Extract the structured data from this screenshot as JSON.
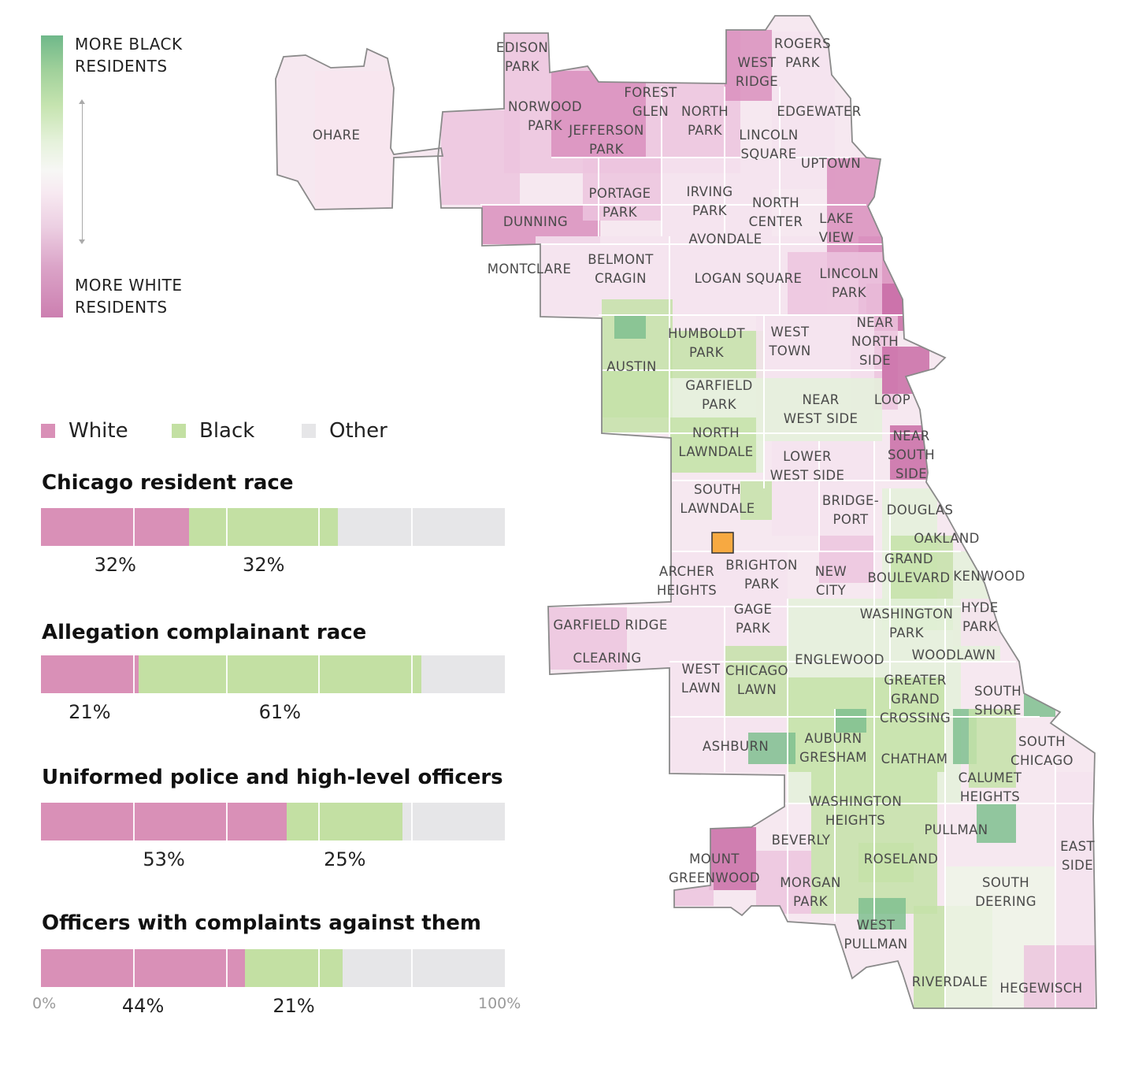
{
  "gradient_legend": {
    "top_label": [
      "MORE BLACK",
      "RESIDENTS"
    ],
    "bottom_label": [
      "MORE WHITE",
      "RESIDENTS"
    ],
    "colors": [
      "#6fb88a",
      "#c6e4b0",
      "#f7f7f5",
      "#eccfe2",
      "#cc7fb0"
    ]
  },
  "category_legend": [
    {
      "label": "White",
      "color": "#d990b7"
    },
    {
      "label": "Black",
      "color": "#c3e0a3"
    },
    {
      "label": "Other",
      "color": "#e6e6e8"
    }
  ],
  "chart_data": {
    "type": "bar",
    "stacked": true,
    "x_range": [
      0,
      100
    ],
    "xticks": [
      "0%",
      "100%"
    ],
    "categories": [
      "Chicago resident race",
      "Allegation complainant race",
      "Uniformed police and high-level officers",
      "Officers with complaints against them"
    ],
    "series": [
      {
        "name": "White",
        "values": [
          32,
          21,
          53,
          44
        ],
        "labels": [
          "32%",
          "21%",
          "53%",
          "44%"
        ]
      },
      {
        "name": "Black",
        "values": [
          32,
          61,
          25,
          21
        ],
        "labels": [
          "32%",
          "61%",
          "25%",
          "21%"
        ]
      },
      {
        "name": "Other",
        "values": [
          36,
          18,
          22,
          35
        ]
      }
    ]
  },
  "map": {
    "marker_color": "#f7a941",
    "neighborhoods": [
      [
        "EDISON",
        "PARK"
      ],
      [
        "ROGERS",
        "PARK"
      ],
      [
        "WEST",
        "RIDGE"
      ],
      [
        "NORWOOD",
        "PARK"
      ],
      [
        "FOREST",
        "GLEN"
      ],
      [
        "NORTH",
        "PARK"
      ],
      [
        "EDGEWATER"
      ],
      [
        "OHARE"
      ],
      [
        "JEFFERSON",
        "PARK"
      ],
      [
        "LINCOLN",
        "SQUARE"
      ],
      [
        "UPTOWN"
      ],
      [
        "PORTAGE",
        "PARK"
      ],
      [
        "IRVING",
        "PARK"
      ],
      [
        "NORTH",
        "CENTER"
      ],
      [
        "DUNNING"
      ],
      [
        "LAKE",
        "VIEW"
      ],
      [
        "AVONDALE"
      ],
      [
        "BELMONT",
        "CRAGIN"
      ],
      [
        "MONTCLARE"
      ],
      [
        "LOGAN SQUARE"
      ],
      [
        "LINCOLN",
        "PARK"
      ],
      [
        "NEAR",
        "NORTH",
        "SIDE"
      ],
      [
        "HUMBOLDT",
        "PARK"
      ],
      [
        "WEST",
        "TOWN"
      ],
      [
        "AUSTIN"
      ],
      [
        "GARFIELD",
        "PARK"
      ],
      [
        "NEAR",
        "WEST SIDE"
      ],
      [
        "LOOP"
      ],
      [
        "NORTH",
        "LAWNDALE"
      ],
      [
        "NEAR",
        "SOUTH",
        "SIDE"
      ],
      [
        "LOWER",
        "WEST SIDE"
      ],
      [
        "SOUTH",
        "LAWNDALE"
      ],
      [
        "BRIDGE-",
        "PORT"
      ],
      [
        "DOUGLAS"
      ],
      [
        "OAKLAND"
      ],
      [
        "ARCHER",
        "HEIGHTS"
      ],
      [
        "BRIGHTON",
        "PARK"
      ],
      [
        "NEW",
        "CITY"
      ],
      [
        "GRAND",
        "BOULEVARD"
      ],
      [
        "KENWOOD"
      ],
      [
        "GAGE",
        "PARK"
      ],
      [
        "WASHINGTON",
        "PARK"
      ],
      [
        "HYDE",
        "PARK"
      ],
      [
        "GARFIELD RIDGE"
      ],
      [
        "CLEARING"
      ],
      [
        "ENGLEWOOD"
      ],
      [
        "WOODLAWN"
      ],
      [
        "WEST",
        "LAWN"
      ],
      [
        "CHICAGO",
        "LAWN"
      ],
      [
        "GREATER",
        "GRAND",
        "CROSSING"
      ],
      [
        "SOUTH",
        "SHORE"
      ],
      [
        "ASHBURN"
      ],
      [
        "AUBURN",
        "GRESHAM"
      ],
      [
        "CHATHAM"
      ],
      [
        "SOUTH",
        "CHICAGO"
      ],
      [
        "CALUMET",
        "HEIGHTS"
      ],
      [
        "WASHINGTON",
        "HEIGHTS"
      ],
      [
        "PULLMAN"
      ],
      [
        "BEVERLY"
      ],
      [
        "EAST",
        "SIDE"
      ],
      [
        "MOUNT",
        "GREENWOOD"
      ],
      [
        "ROSELAND"
      ],
      [
        "MORGAN",
        "PARK"
      ],
      [
        "SOUTH",
        "DEERING"
      ],
      [
        "WEST",
        "PULLMAN"
      ],
      [
        "RIVERDALE"
      ],
      [
        "HEGEWISCH"
      ]
    ]
  }
}
